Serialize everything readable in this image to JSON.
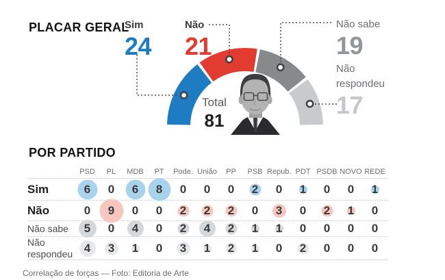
{
  "header": {
    "title": "PLACAR GERAL"
  },
  "gauge": {
    "total_label": "Total",
    "total_value": 81,
    "segments": [
      {
        "label": "Sim",
        "value": 24,
        "color": "#1e7dc2",
        "value_color": "#1e7dc2"
      },
      {
        "label": "Não",
        "value": 21,
        "color": "#e23c30",
        "value_color": "#e23c30"
      },
      {
        "label": "Não sabe",
        "value": 19,
        "color": "#87898b",
        "value_color": "#939598"
      },
      {
        "label": "Não respondeu",
        "value": 17,
        "color": "#c9cacc",
        "value_color": "#c6c7c9"
      }
    ]
  },
  "table": {
    "title": "POR PARTIDO",
    "columns": [
      "PSD",
      "PL",
      "MDB",
      "PT",
      "Pode.",
      "União",
      "PP",
      "PSB",
      "Repub.",
      "PDT",
      "PSDB",
      "NOVO",
      "REDE"
    ],
    "rows": [
      {
        "label": "Sim",
        "bold": true,
        "circle_color": "#a9d2ec",
        "values": [
          6,
          0,
          6,
          8,
          0,
          0,
          0,
          2,
          0,
          1,
          0,
          0,
          1
        ]
      },
      {
        "label": "Não",
        "bold": true,
        "circle_color": "#f6c6bf",
        "values": [
          0,
          9,
          0,
          0,
          2,
          2,
          2,
          0,
          3,
          0,
          2,
          1,
          0
        ]
      },
      {
        "label": "Não sabe",
        "bold": false,
        "circle_color": "#d6d7d8",
        "values": [
          5,
          0,
          4,
          0,
          2,
          4,
          2,
          1,
          1,
          0,
          0,
          0,
          0
        ]
      },
      {
        "label": "Não respondeu",
        "bold": false,
        "circle_color": "#e7e8e9",
        "values": [
          4,
          3,
          1,
          0,
          3,
          1,
          2,
          1,
          0,
          2,
          0,
          0,
          0
        ]
      }
    ]
  },
  "footer": {
    "credit": "Correlação de forças — Foto: Editoria de Arte"
  },
  "chart_data": [
    {
      "type": "pie",
      "subtype": "semicircle-donut-gauge",
      "title": "PLACAR GERAL",
      "labels": [
        "Sim",
        "Não",
        "Não sabe",
        "Não respondeu"
      ],
      "values": [
        24,
        21,
        19,
        17
      ],
      "colors": [
        "#1e7dc2",
        "#e23c30",
        "#87898b",
        "#c9cacc"
      ],
      "center_label": "Total",
      "center_value": 81,
      "legend_position": "callouts"
    },
    {
      "type": "table",
      "title": "POR PARTIDO",
      "columns": [
        "PSD",
        "PL",
        "MDB",
        "PT",
        "Pode.",
        "União",
        "PP",
        "PSB",
        "Repub.",
        "PDT",
        "PSDB",
        "NOVO",
        "REDE"
      ],
      "rows": [
        {
          "label": "Sim",
          "values": [
            6,
            0,
            6,
            8,
            0,
            0,
            0,
            2,
            0,
            1,
            0,
            0,
            1
          ]
        },
        {
          "label": "Não",
          "values": [
            0,
            9,
            0,
            0,
            2,
            2,
            2,
            0,
            3,
            0,
            2,
            1,
            0
          ]
        },
        {
          "label": "Não sabe",
          "values": [
            5,
            0,
            4,
            0,
            2,
            4,
            2,
            1,
            1,
            0,
            0,
            0,
            0
          ]
        },
        {
          "label": "Não respondeu",
          "values": [
            4,
            3,
            1,
            0,
            3,
            1,
            2,
            1,
            0,
            2,
            0,
            0,
            0
          ]
        }
      ]
    }
  ]
}
